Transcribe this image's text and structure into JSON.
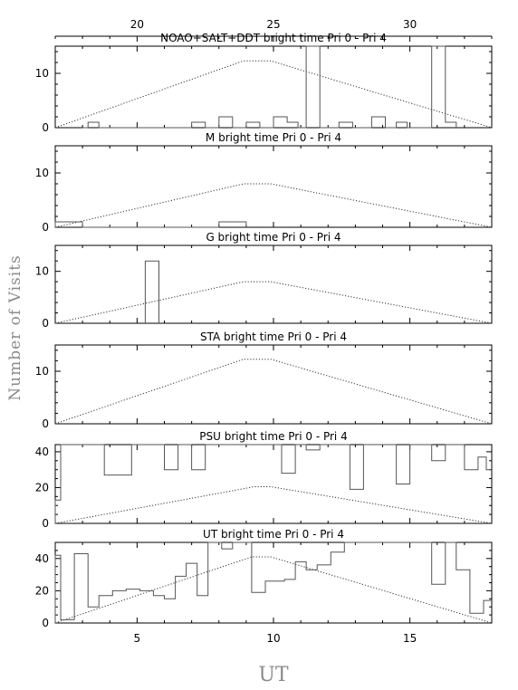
{
  "chart_data": {
    "type": "histogram-panels",
    "xlabel": "UT",
    "ylabel": "Number of Visits",
    "xlim": [
      2,
      18
    ],
    "xticks": [
      5,
      10,
      15
    ],
    "top_axis": {
      "ticks": [
        20,
        25,
        30
      ],
      "offset": 15
    },
    "colors": {
      "axes": "#000000",
      "step": "#555555",
      "curve": "#333333",
      "axis_title": "#8a8a8a"
    },
    "panels": [
      {
        "title": "NOAO+SALT+DDT    bright time Pri 0 - Pri 4",
        "ylim": [
          0,
          15
        ],
        "yticks": [
          0,
          10
        ],
        "bins": [
          [
            3,
            0
          ],
          [
            3.2,
            1
          ],
          [
            3.6,
            0
          ],
          [
            7,
            1
          ],
          [
            7.5,
            0
          ],
          [
            8,
            2
          ],
          [
            8.5,
            0
          ],
          [
            9,
            1
          ],
          [
            9.5,
            0
          ],
          [
            10,
            2
          ],
          [
            10.5,
            1
          ],
          [
            10.9,
            0
          ],
          [
            11.2,
            15
          ],
          [
            11.7,
            0
          ],
          [
            12.4,
            1
          ],
          [
            12.9,
            0
          ],
          [
            13.6,
            2
          ],
          [
            14.1,
            0
          ],
          [
            14.5,
            1
          ],
          [
            14.9,
            0
          ],
          [
            15.8,
            15
          ],
          [
            16.3,
            1
          ],
          [
            16.7,
            0
          ]
        ],
        "curve": [
          [
            2,
            0
          ],
          [
            8.9,
            12.3
          ],
          [
            9.9,
            12.3
          ],
          [
            18,
            0
          ]
        ]
      },
      {
        "title": "M    bright time Pri 0 - Pri 4",
        "ylim": [
          0,
          15
        ],
        "yticks": [
          0,
          10
        ],
        "bins": [
          [
            2,
            1
          ],
          [
            3,
            0
          ],
          [
            8,
            1
          ],
          [
            9,
            0
          ]
        ],
        "curve": [
          [
            2,
            0
          ],
          [
            8.9,
            8
          ],
          [
            9.9,
            8
          ],
          [
            18,
            0
          ]
        ]
      },
      {
        "title": "G    bright time Pri 0 - Pri 4",
        "ylim": [
          0,
          15
        ],
        "yticks": [
          0,
          10
        ],
        "bins": [
          [
            5.3,
            12
          ],
          [
            5.8,
            0
          ]
        ],
        "curve": [
          [
            2,
            0
          ],
          [
            8.9,
            8
          ],
          [
            9.9,
            8
          ],
          [
            18,
            0
          ]
        ]
      },
      {
        "title": "STA    bright time Pri 0 - Pri 4",
        "ylim": [
          0,
          15
        ],
        "yticks": [
          0,
          10
        ],
        "bins": [],
        "curve": [
          [
            2,
            0
          ],
          [
            8.9,
            12.3
          ],
          [
            9.9,
            12.3
          ],
          [
            18,
            0
          ]
        ]
      },
      {
        "title": "PSU    bright time Pri 0 - Pri 4",
        "ylim": [
          0,
          44
        ],
        "yticks": [
          0,
          20,
          40
        ],
        "bins": [
          [
            2,
            13
          ],
          [
            2.2,
            44
          ],
          [
            3.8,
            27
          ],
          [
            4.8,
            44
          ],
          [
            6,
            30
          ],
          [
            6.5,
            44
          ],
          [
            7,
            30
          ],
          [
            7.5,
            44
          ],
          [
            10.3,
            28
          ],
          [
            10.8,
            44
          ],
          [
            11.2,
            41
          ],
          [
            11.7,
            44
          ],
          [
            12.8,
            19
          ],
          [
            13.3,
            44
          ],
          [
            14.5,
            22
          ],
          [
            15,
            44
          ],
          [
            15.8,
            35
          ],
          [
            16.3,
            44
          ],
          [
            17,
            30
          ],
          [
            17.5,
            37
          ],
          [
            17.8,
            30
          ],
          [
            18,
            30
          ]
        ],
        "curve": [
          [
            2,
            0
          ],
          [
            9.3,
            20.5
          ],
          [
            9.9,
            20.5
          ],
          [
            18,
            0
          ]
        ]
      },
      {
        "title": "UT    bright time Pri 0 - Pri 4",
        "ylim": [
          0,
          50
        ],
        "yticks": [
          0,
          20,
          40
        ],
        "bins": [
          [
            2,
            42
          ],
          [
            2.2,
            2
          ],
          [
            2.7,
            43
          ],
          [
            3.2,
            10
          ],
          [
            3.6,
            17
          ],
          [
            4.1,
            20
          ],
          [
            4.6,
            21
          ],
          [
            5.1,
            20
          ],
          [
            5.6,
            17
          ],
          [
            6,
            15
          ],
          [
            6.4,
            29
          ],
          [
            6.8,
            37
          ],
          [
            7.2,
            17
          ],
          [
            7.6,
            50
          ],
          [
            8.1,
            46
          ],
          [
            8.5,
            50
          ],
          [
            9.2,
            19
          ],
          [
            9.7,
            26
          ],
          [
            10.4,
            27
          ],
          [
            10.8,
            38
          ],
          [
            11.2,
            33
          ],
          [
            11.6,
            36
          ],
          [
            12.1,
            44
          ],
          [
            12.6,
            50
          ],
          [
            15.8,
            24
          ],
          [
            16.3,
            50
          ],
          [
            16.7,
            33
          ],
          [
            17.2,
            6
          ],
          [
            17.7,
            14
          ],
          [
            18,
            14
          ]
        ],
        "curve": [
          [
            2,
            0
          ],
          [
            9.2,
            41
          ],
          [
            9.9,
            41
          ],
          [
            18,
            0
          ]
        ]
      }
    ]
  }
}
